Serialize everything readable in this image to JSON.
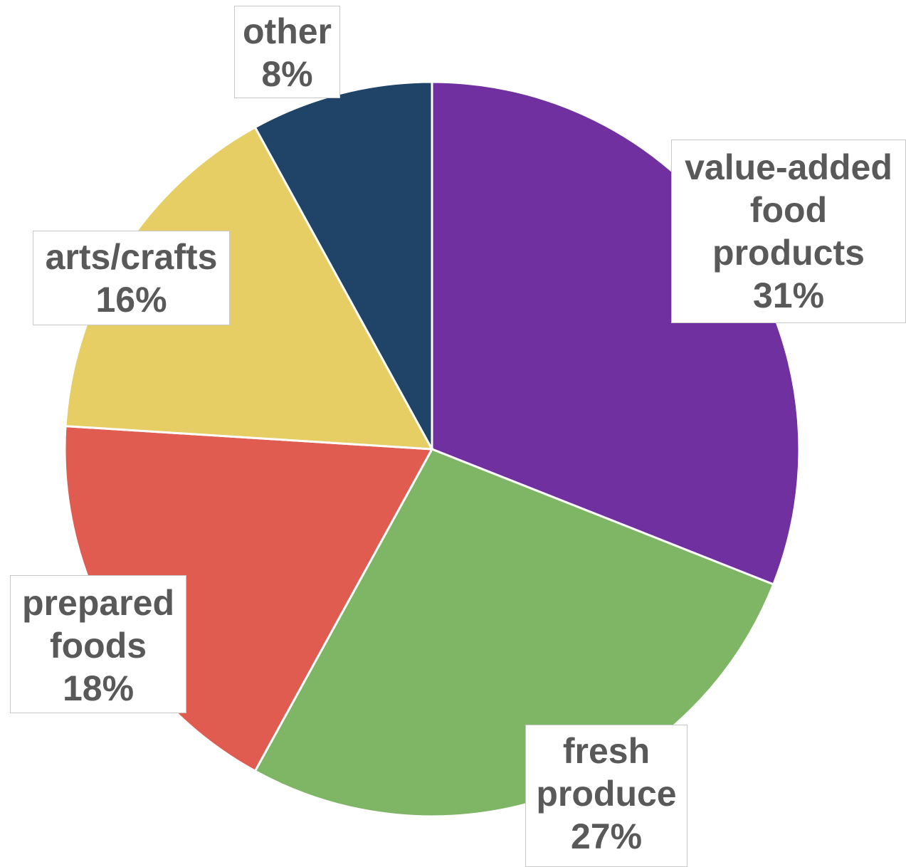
{
  "chart_data": {
    "type": "pie",
    "start_angle_deg": 0,
    "direction": "clockwise",
    "slices": [
      {
        "key": "value-added",
        "label_lines": [
          "value-added",
          "food",
          "products"
        ],
        "value_text": "31%",
        "value": 31,
        "color": "#7030a0"
      },
      {
        "key": "fresh",
        "label_lines": [
          "fresh",
          "produce"
        ],
        "value_text": "27%",
        "value": 27,
        "color": "#7eb665"
      },
      {
        "key": "prepared",
        "label_lines": [
          "prepared",
          "foods"
        ],
        "value_text": "18%",
        "value": 18,
        "color": "#e05c51"
      },
      {
        "key": "arts",
        "label_lines": [
          "arts/crafts"
        ],
        "value_text": "16%",
        "value": 16,
        "color": "#e6ce65"
      },
      {
        "key": "other",
        "label_lines": [
          "other"
        ],
        "value_text": "8%",
        "value": 8,
        "color": "#1f4468"
      }
    ]
  }
}
